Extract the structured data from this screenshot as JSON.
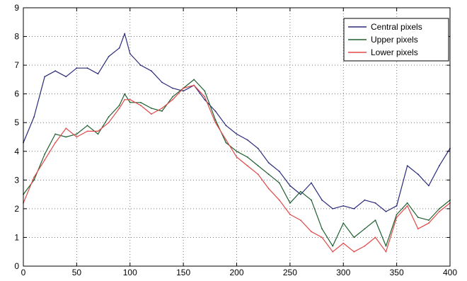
{
  "chart_data": {
    "type": "line",
    "title": "",
    "xlabel": "",
    "ylabel": "",
    "xlim": [
      0,
      400
    ],
    "ylim": [
      0,
      9
    ],
    "x_ticks": [
      0,
      50,
      100,
      150,
      200,
      250,
      300,
      350,
      400
    ],
    "y_ticks": [
      0,
      1,
      2,
      3,
      4,
      5,
      6,
      7,
      8,
      9
    ],
    "grid": true,
    "legend_position": "top-right",
    "x": [
      0,
      10,
      20,
      30,
      40,
      50,
      60,
      70,
      80,
      90,
      95,
      100,
      110,
      120,
      130,
      140,
      150,
      160,
      170,
      180,
      190,
      200,
      210,
      220,
      230,
      240,
      250,
      260,
      270,
      280,
      290,
      300,
      310,
      320,
      330,
      340,
      350,
      360,
      370,
      380,
      390,
      400
    ],
    "series": [
      {
        "name": "Central pixels",
        "color": "#2a2a7a",
        "values": [
          4.3,
          5.2,
          6.6,
          6.8,
          6.6,
          6.9,
          6.9,
          6.7,
          7.3,
          7.6,
          8.1,
          7.4,
          7.0,
          6.8,
          6.4,
          6.2,
          6.1,
          6.3,
          5.8,
          5.4,
          4.9,
          4.6,
          4.4,
          4.1,
          3.6,
          3.3,
          2.8,
          2.5,
          2.9,
          2.3,
          2.0,
          2.1,
          2.0,
          2.3,
          2.2,
          1.9,
          2.1,
          3.5,
          3.2,
          2.8,
          3.5,
          4.1
        ]
      },
      {
        "name": "Upper pixels",
        "color": "#1f5f2f",
        "values": [
          2.5,
          3.0,
          3.9,
          4.6,
          4.5,
          4.6,
          4.9,
          4.6,
          5.2,
          5.6,
          6.0,
          5.7,
          5.7,
          5.5,
          5.4,
          5.9,
          6.2,
          6.5,
          6.1,
          5.1,
          4.3,
          4.0,
          3.8,
          3.5,
          3.2,
          2.9,
          2.2,
          2.6,
          2.3,
          1.3,
          0.7,
          1.5,
          1.0,
          1.3,
          1.6,
          0.7,
          1.8,
          2.2,
          1.7,
          1.6,
          2.0,
          2.3
        ]
      },
      {
        "name": "Lower pixels",
        "color": "#e04848",
        "values": [
          2.2,
          3.1,
          3.7,
          4.3,
          4.8,
          4.5,
          4.7,
          4.7,
          5.0,
          5.5,
          5.8,
          5.8,
          5.6,
          5.3,
          5.5,
          5.8,
          6.2,
          6.3,
          5.9,
          5.0,
          4.4,
          3.8,
          3.5,
          3.2,
          2.7,
          2.3,
          1.8,
          1.6,
          1.2,
          1.0,
          0.5,
          0.8,
          0.5,
          0.7,
          1.0,
          0.5,
          1.7,
          2.1,
          1.3,
          1.5,
          1.9,
          2.2
        ]
      }
    ]
  }
}
